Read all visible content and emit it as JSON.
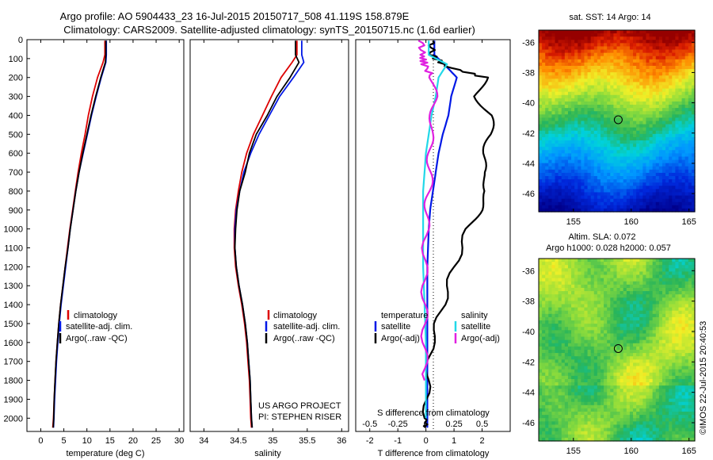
{
  "title_line1": "Argo profile: AO 5904433_23 16-Jul-2015 20150717_508 41.119S 158.879E",
  "title_line2": "Climatology: CARS2009. Satellite-adjusted climatology: synTS_20150715.nc (1.6d earlier)",
  "colors": {
    "climatology": "#dd0000",
    "satellite": "#0018e6",
    "argo": "#000000",
    "cyan": "#22d8e8",
    "magenta": "#e020e0"
  },
  "chart_data": [
    {
      "type": "line",
      "xlabel": "temperature (deg C)",
      "ylabel": "",
      "xlim": [
        -3,
        31
      ],
      "ylim": [
        2070,
        0
      ],
      "xticks": [
        0,
        5,
        10,
        15,
        20,
        25,
        30
      ],
      "yticks": [
        0,
        100,
        200,
        300,
        400,
        500,
        600,
        700,
        800,
        900,
        1000,
        1100,
        1200,
        1300,
        1400,
        1500,
        1600,
        1700,
        1800,
        1900,
        2000
      ],
      "legend": [
        "climatology",
        "satellite-adj. clim.",
        "Argo(..raw -QC)"
      ],
      "series": [
        {
          "name": "climatology",
          "color": "#dd0000",
          "points": [
            [
              13.9,
              5
            ],
            [
              13.9,
              80
            ],
            [
              13.5,
              120
            ],
            [
              12.3,
              200
            ],
            [
              11.2,
              300
            ],
            [
              10.3,
              400
            ],
            [
              9.6,
              500
            ],
            [
              8.8,
              600
            ],
            [
              8.1,
              700
            ],
            [
              7.5,
              800
            ],
            [
              6.9,
              900
            ],
            [
              6.3,
              1000
            ],
            [
              5.8,
              1100
            ],
            [
              5.3,
              1200
            ],
            [
              4.8,
              1300
            ],
            [
              4.3,
              1400
            ],
            [
              3.9,
              1500
            ],
            [
              3.6,
              1600
            ],
            [
              3.3,
              1700
            ],
            [
              3.1,
              1800
            ],
            [
              2.9,
              1900
            ],
            [
              2.75,
              2000
            ],
            [
              2.6,
              2050
            ]
          ]
        },
        {
          "name": "satellite-adj. clim.",
          "color": "#0018e6",
          "points": [
            [
              14.2,
              5
            ],
            [
              14.2,
              80
            ],
            [
              14.1,
              120
            ],
            [
              13.1,
              200
            ],
            [
              12.0,
              300
            ],
            [
              11.0,
              400
            ],
            [
              10.1,
              500
            ],
            [
              9.2,
              600
            ],
            [
              8.3,
              700
            ],
            [
              7.6,
              800
            ],
            [
              7.0,
              900
            ],
            [
              6.4,
              1000
            ],
            [
              5.9,
              1100
            ],
            [
              5.4,
              1200
            ],
            [
              4.9,
              1300
            ],
            [
              4.4,
              1400
            ],
            [
              4.0,
              1500
            ],
            [
              3.7,
              1600
            ],
            [
              3.4,
              1700
            ],
            [
              3.2,
              1800
            ],
            [
              3.0,
              1900
            ],
            [
              2.85,
              2000
            ],
            [
              2.75,
              2050
            ]
          ]
        },
        {
          "name": "Argo(..raw -QC)",
          "color": "#000000",
          "points": [
            [
              14.1,
              5
            ],
            [
              14.1,
              80
            ],
            [
              14.0,
              120
            ],
            [
              13.0,
              200
            ],
            [
              11.9,
              300
            ],
            [
              10.9,
              400
            ],
            [
              10.0,
              500
            ],
            [
              9.1,
              600
            ],
            [
              8.3,
              700
            ],
            [
              7.6,
              800
            ],
            [
              7.0,
              900
            ],
            [
              6.4,
              1000
            ],
            [
              5.9,
              1100
            ],
            [
              5.3,
              1200
            ],
            [
              4.8,
              1300
            ],
            [
              4.3,
              1400
            ],
            [
              3.9,
              1500
            ],
            [
              3.6,
              1600
            ],
            [
              3.3,
              1700
            ],
            [
              3.1,
              1800
            ],
            [
              2.9,
              1900
            ],
            [
              2.8,
              2000
            ],
            [
              2.7,
              2050
            ]
          ]
        }
      ]
    },
    {
      "type": "line",
      "xlabel": "salinity",
      "xlim": [
        33.8,
        36.1
      ],
      "ylim": [
        2070,
        0
      ],
      "xticks": [
        "34",
        "34.5",
        "35",
        "35.5",
        "36"
      ],
      "legend": [
        "climatology",
        "satellite-adj. clim.",
        "Argo(..raw -QC)"
      ],
      "credit": [
        "US ARGO PROJECT",
        "PI: STEPHEN RISER"
      ],
      "series": [
        {
          "name": "climatology",
          "color": "#dd0000",
          "points": [
            [
              35.35,
              5
            ],
            [
              35.35,
              80
            ],
            [
              35.28,
              120
            ],
            [
              35.12,
              200
            ],
            [
              34.98,
              300
            ],
            [
              34.85,
              400
            ],
            [
              34.72,
              500
            ],
            [
              34.62,
              600
            ],
            [
              34.55,
              700
            ],
            [
              34.5,
              800
            ],
            [
              34.46,
              900
            ],
            [
              34.44,
              1000
            ],
            [
              34.44,
              1100
            ],
            [
              34.46,
              1200
            ],
            [
              34.5,
              1300
            ],
            [
              34.55,
              1400
            ],
            [
              34.59,
              1500
            ],
            [
              34.62,
              1600
            ],
            [
              34.64,
              1700
            ],
            [
              34.66,
              1800
            ],
            [
              34.67,
              1900
            ],
            [
              34.68,
              2000
            ],
            [
              34.69,
              2050
            ]
          ]
        },
        {
          "name": "satellite-adj. clim.",
          "color": "#0018e6",
          "points": [
            [
              35.42,
              5
            ],
            [
              35.42,
              80
            ],
            [
              35.45,
              120
            ],
            [
              35.3,
              200
            ],
            [
              35.1,
              300
            ],
            [
              34.95,
              400
            ],
            [
              34.8,
              500
            ],
            [
              34.68,
              600
            ],
            [
              34.58,
              700
            ],
            [
              34.52,
              800
            ],
            [
              34.47,
              900
            ],
            [
              34.45,
              1000
            ],
            [
              34.45,
              1100
            ],
            [
              34.47,
              1200
            ],
            [
              34.51,
              1300
            ],
            [
              34.56,
              1400
            ],
            [
              34.6,
              1500
            ],
            [
              34.63,
              1600
            ],
            [
              34.65,
              1700
            ],
            [
              34.67,
              1800
            ],
            [
              34.68,
              1900
            ],
            [
              34.69,
              2000
            ],
            [
              34.7,
              2050
            ]
          ]
        },
        {
          "name": "Argo(..raw -QC)",
          "color": "#000000",
          "points": [
            [
              35.33,
              5
            ],
            [
              35.33,
              80
            ],
            [
              35.38,
              120
            ],
            [
              35.25,
              200
            ],
            [
              35.06,
              300
            ],
            [
              34.92,
              400
            ],
            [
              34.76,
              500
            ],
            [
              34.66,
              600
            ],
            [
              34.6,
              700
            ],
            [
              34.52,
              800
            ],
            [
              34.48,
              900
            ],
            [
              34.46,
              1000
            ],
            [
              34.45,
              1100
            ],
            [
              34.47,
              1200
            ],
            [
              34.51,
              1300
            ],
            [
              34.56,
              1400
            ],
            [
              34.6,
              1500
            ],
            [
              34.63,
              1600
            ],
            [
              34.65,
              1700
            ],
            [
              34.67,
              1800
            ],
            [
              34.68,
              1900
            ],
            [
              34.69,
              2000
            ],
            [
              34.7,
              2050
            ]
          ]
        }
      ]
    },
    {
      "type": "line",
      "xlabel": "T difference from climatology",
      "xlabel_top": "S difference from climatology",
      "xlim": [
        -2.5,
        3.0
      ],
      "ylim": [
        2070,
        0
      ],
      "xticks": [
        "-2",
        "-1",
        "0",
        "1",
        "2"
      ],
      "xticks_s": [
        "-0.5",
        "-0.25",
        "0",
        "0.25",
        "0.5"
      ],
      "legend_left_title": "temperature",
      "legend_right_title": "salinity",
      "legend_left": [
        "satellite",
        "Argo(-adj)"
      ],
      "legend_right": [
        "satellite",
        "Argo(-adj)"
      ],
      "series": [
        {
          "name": "T satellite",
          "color": "#0018e6",
          "points": [
            [
              0.3,
              5
            ],
            [
              0.3,
              80
            ],
            [
              0.65,
              130
            ],
            [
              1.1,
              200
            ],
            [
              0.9,
              300
            ],
            [
              0.8,
              400
            ],
            [
              0.6,
              500
            ],
            [
              0.45,
              600
            ],
            [
              0.35,
              700
            ],
            [
              0.25,
              800
            ],
            [
              0.15,
              900
            ],
            [
              0.1,
              1000
            ],
            [
              0.05,
              1200
            ],
            [
              0.05,
              1400
            ],
            [
              0.05,
              1600
            ],
            [
              0.05,
              1800
            ],
            [
              0.05,
              2000
            ],
            [
              0.05,
              2050
            ]
          ]
        },
        {
          "name": "T Argo(-adj)",
          "color": "#000000",
          "points": [
            [
              0.2,
              5
            ],
            [
              0.2,
              80
            ],
            [
              0.7,
              140
            ],
            [
              2.1,
              200
            ],
            [
              1.8,
              300
            ],
            [
              2.3,
              400
            ],
            [
              2.3,
              500
            ],
            [
              2.1,
              600
            ],
            [
              2.0,
              700
            ],
            [
              2.2,
              800
            ],
            [
              1.9,
              900
            ],
            [
              1.5,
              1000
            ],
            [
              1.0,
              1200
            ],
            [
              0.6,
              1400
            ],
            [
              0.2,
              1600
            ],
            [
              0.05,
              1800
            ],
            [
              0.0,
              2000
            ],
            [
              0.0,
              2050
            ]
          ]
        },
        {
          "name": "S satellite",
          "color": "#22d8e8",
          "points": [
            [
              0.1,
              5
            ],
            [
              0.1,
              80
            ],
            [
              0.75,
              130
            ],
            [
              0.45,
              200
            ],
            [
              0.35,
              300
            ],
            [
              0.2,
              400
            ],
            [
              0.1,
              500
            ],
            [
              0.0,
              600
            ],
            [
              -0.05,
              700
            ],
            [
              -0.1,
              800
            ],
            [
              -0.1,
              900
            ],
            [
              -0.1,
              1000
            ],
            [
              -0.1,
              1200
            ],
            [
              -0.05,
              1400
            ],
            [
              0.0,
              1600
            ],
            [
              0.0,
              1800
            ],
            [
              0.0,
              2000
            ]
          ]
        },
        {
          "name": "S Argo(-adj)",
          "color": "#e020e0",
          "points": [
            [
              -0.15,
              5
            ],
            [
              -0.15,
              80
            ],
            [
              -0.05,
              130
            ],
            [
              0.2,
              200
            ],
            [
              0.3,
              300
            ],
            [
              0.25,
              400
            ],
            [
              0.15,
              500
            ],
            [
              0.15,
              600
            ],
            [
              0.15,
              700
            ],
            [
              0.1,
              800
            ],
            [
              0.05,
              900
            ],
            [
              0.0,
              1000
            ],
            [
              -0.05,
              1200
            ],
            [
              -0.05,
              1400
            ],
            [
              -0.05,
              1600
            ],
            [
              -0.05,
              1800
            ]
          ]
        }
      ]
    },
    {
      "type": "heatmap",
      "title": "sat. SST: 14 Argo: 14",
      "xlim": [
        152,
        165.5
      ],
      "ylim": [
        -47.2,
        -35.2
      ],
      "xticks": [
        "155",
        "160",
        "165"
      ],
      "yticks": [
        "-36",
        "-38",
        "-40",
        "-42",
        "-44",
        "-46"
      ],
      "marker": [
        158.88,
        -41.12
      ]
    },
    {
      "type": "heatmap",
      "title_line1": "Altim. SLA: 0.072",
      "title_line2": "Argo h1000: 0.028 h2000: 0.057",
      "xlim": [
        152,
        165.5
      ],
      "ylim": [
        -47.2,
        -35.2
      ],
      "xticks": [
        "155",
        "160",
        "165"
      ],
      "yticks": [
        "-36",
        "-38",
        "-40",
        "-42",
        "-44",
        "-46"
      ],
      "marker": [
        158.88,
        -41.12
      ],
      "credit": "©IMOS 22-Jul-2015 20:40:53"
    }
  ]
}
